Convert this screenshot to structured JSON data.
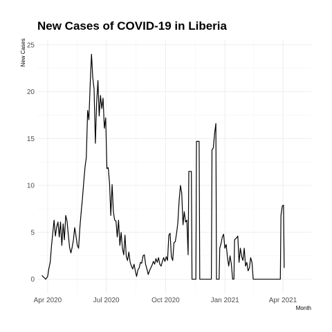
{
  "chart_data": {
    "type": "line",
    "title": "New Cases of COVID-19 in Liberia",
    "xlabel": "Month",
    "ylabel": "New Cases",
    "xlim": [
      "2020-03-16",
      "2021-05-15"
    ],
    "ylim": [
      -1.5,
      25.5
    ],
    "x_ticks": [
      {
        "date": "2020-04-01",
        "label": "Apr 2020"
      },
      {
        "date": "2020-07-01",
        "label": "Jul 2020"
      },
      {
        "date": "2020-10-01",
        "label": "Oct 2020"
      },
      {
        "date": "2021-01-01",
        "label": "Jan 2021"
      },
      {
        "date": "2021-04-01",
        "label": "Apr 2021"
      }
    ],
    "y_ticks": [
      0,
      5,
      10,
      15,
      20,
      25
    ],
    "grid": true,
    "series": [
      {
        "points": [
          [
            "2020-03-23",
            0.4
          ],
          [
            "2020-03-26",
            0.2
          ],
          [
            "2020-03-29",
            0.0
          ],
          [
            "2020-04-01",
            0.3
          ],
          [
            "2020-04-03",
            1.2
          ],
          [
            "2020-04-05",
            1.8
          ],
          [
            "2020-04-07",
            3.6
          ],
          [
            "2020-04-09",
            5.0
          ],
          [
            "2020-04-11",
            6.3
          ],
          [
            "2020-04-13",
            4.6
          ],
          [
            "2020-04-15",
            5.6
          ],
          [
            "2020-04-17",
            6.1
          ],
          [
            "2020-04-19",
            4.5
          ],
          [
            "2020-04-21",
            6.1
          ],
          [
            "2020-04-23",
            3.6
          ],
          [
            "2020-04-25",
            5.9
          ],
          [
            "2020-04-27",
            4.2
          ],
          [
            "2020-04-29",
            6.8
          ],
          [
            "2020-05-01",
            6.2
          ],
          [
            "2020-05-03",
            4.8
          ],
          [
            "2020-05-05",
            3.4
          ],
          [
            "2020-05-07",
            2.8
          ],
          [
            "2020-05-09",
            3.4
          ],
          [
            "2020-05-11",
            4.2
          ],
          [
            "2020-05-13",
            5.5
          ],
          [
            "2020-05-15",
            4.6
          ],
          [
            "2020-05-17",
            3.6
          ],
          [
            "2020-05-19",
            3.3
          ],
          [
            "2020-05-21",
            5.5
          ],
          [
            "2020-05-23",
            7.2
          ],
          [
            "2020-05-25",
            8.6
          ],
          [
            "2020-05-27",
            10.4
          ],
          [
            "2020-05-29",
            12.0
          ],
          [
            "2020-05-31",
            13.0
          ],
          [
            "2020-06-02",
            18.0
          ],
          [
            "2020-06-04",
            17.0
          ],
          [
            "2020-06-06",
            20.8
          ],
          [
            "2020-06-08",
            24.0
          ],
          [
            "2020-06-10",
            21.5
          ],
          [
            "2020-06-12",
            20.3
          ],
          [
            "2020-06-14",
            14.5
          ],
          [
            "2020-06-16",
            18.8
          ],
          [
            "2020-06-18",
            21.2
          ],
          [
            "2020-06-20",
            17.4
          ],
          [
            "2020-06-22",
            19.6
          ],
          [
            "2020-06-24",
            18.2
          ],
          [
            "2020-06-26",
            19.3
          ],
          [
            "2020-06-28",
            16.1
          ],
          [
            "2020-06-30",
            17.2
          ],
          [
            "2020-07-02",
            11.8
          ],
          [
            "2020-07-04",
            11.9
          ],
          [
            "2020-07-06",
            10.2
          ],
          [
            "2020-07-08",
            6.8
          ],
          [
            "2020-07-10",
            10.1
          ],
          [
            "2020-07-12",
            7.2
          ],
          [
            "2020-07-14",
            6.3
          ],
          [
            "2020-07-16",
            6.2
          ],
          [
            "2020-07-18",
            4.5
          ],
          [
            "2020-07-20",
            6.3
          ],
          [
            "2020-07-22",
            3.6
          ],
          [
            "2020-07-24",
            5.0
          ],
          [
            "2020-07-26",
            3.3
          ],
          [
            "2020-07-28",
            2.6
          ],
          [
            "2020-07-30",
            4.7
          ],
          [
            "2020-08-01",
            2.4
          ],
          [
            "2020-08-03",
            2.0
          ],
          [
            "2020-08-05",
            2.9
          ],
          [
            "2020-08-07",
            1.8
          ],
          [
            "2020-08-09",
            1.4
          ],
          [
            "2020-08-11",
            1.1
          ],
          [
            "2020-08-13",
            1.6
          ],
          [
            "2020-08-15",
            0.9
          ],
          [
            "2020-08-17",
            0.3
          ],
          [
            "2020-08-19",
            1.0
          ],
          [
            "2020-08-21",
            1.2
          ],
          [
            "2020-08-23",
            1.8
          ],
          [
            "2020-08-25",
            1.7
          ],
          [
            "2020-08-27",
            2.5
          ],
          [
            "2020-08-29",
            2.6
          ],
          [
            "2020-08-31",
            1.6
          ],
          [
            "2020-09-02",
            1.1
          ],
          [
            "2020-09-04",
            0.5
          ],
          [
            "2020-09-06",
            0.9
          ],
          [
            "2020-09-08",
            1.2
          ],
          [
            "2020-09-10",
            1.5
          ],
          [
            "2020-09-12",
            1.9
          ],
          [
            "2020-09-14",
            1.6
          ],
          [
            "2020-09-16",
            2.2
          ],
          [
            "2020-09-18",
            1.8
          ],
          [
            "2020-09-20",
            2.3
          ],
          [
            "2020-09-22",
            1.6
          ],
          [
            "2020-09-24",
            1.4
          ],
          [
            "2020-09-26",
            1.9
          ],
          [
            "2020-09-28",
            2.3
          ],
          [
            "2020-09-30",
            1.9
          ],
          [
            "2020-10-02",
            2.4
          ],
          [
            "2020-10-04",
            2.0
          ],
          [
            "2020-10-06",
            4.7
          ],
          [
            "2020-10-08",
            4.9
          ],
          [
            "2020-10-10",
            2.4
          ],
          [
            "2020-10-12",
            2.0
          ],
          [
            "2020-10-14",
            3.9
          ],
          [
            "2020-10-16",
            4.0
          ],
          [
            "2020-10-18",
            4.9
          ],
          [
            "2020-10-20",
            6.0
          ],
          [
            "2020-10-22",
            8.4
          ],
          [
            "2020-10-24",
            10.0
          ],
          [
            "2020-10-26",
            9.2
          ],
          [
            "2020-10-28",
            5.8
          ],
          [
            "2020-10-30",
            7.2
          ],
          [
            "2020-11-01",
            6.1
          ],
          [
            "2020-11-03",
            6.3
          ],
          [
            "2020-11-05",
            2.6
          ],
          [
            "2020-11-06",
            11.5
          ],
          [
            "2020-11-10",
            11.5
          ],
          [
            "2020-11-11",
            0.0
          ],
          [
            "2020-11-17",
            0.0
          ],
          [
            "2020-11-18",
            14.7
          ],
          [
            "2020-11-22",
            14.7
          ],
          [
            "2020-11-23",
            0.0
          ],
          [
            "2020-12-11",
            0.0
          ],
          [
            "2020-12-12",
            13.8
          ],
          [
            "2020-12-14",
            14.0
          ],
          [
            "2020-12-16",
            15.5
          ],
          [
            "2020-12-18",
            16.6
          ],
          [
            "2020-12-19",
            0.0
          ],
          [
            "2020-12-23",
            0.0
          ],
          [
            "2020-12-24",
            3.3
          ],
          [
            "2020-12-26",
            3.8
          ],
          [
            "2020-12-28",
            4.5
          ],
          [
            "2020-12-30",
            4.8
          ],
          [
            "2021-01-01",
            3.3
          ],
          [
            "2021-01-03",
            3.7
          ],
          [
            "2021-01-05",
            2.3
          ],
          [
            "2021-01-07",
            1.4
          ],
          [
            "2021-01-09",
            2.5
          ],
          [
            "2021-01-11",
            1.6
          ],
          [
            "2021-01-13",
            0.0
          ],
          [
            "2021-01-15",
            0.0
          ],
          [
            "2021-01-16",
            4.2
          ],
          [
            "2021-01-19",
            4.4
          ],
          [
            "2021-01-21",
            4.6
          ],
          [
            "2021-01-23",
            1.8
          ],
          [
            "2021-01-25",
            3.3
          ],
          [
            "2021-01-27",
            2.4
          ],
          [
            "2021-01-29",
            2.0
          ],
          [
            "2021-01-31",
            3.3
          ],
          [
            "2021-02-02",
            1.4
          ],
          [
            "2021-02-04",
            1.8
          ],
          [
            "2021-02-06",
            0.9
          ],
          [
            "2021-02-08",
            1.2
          ],
          [
            "2021-02-10",
            2.3
          ],
          [
            "2021-02-12",
            1.8
          ],
          [
            "2021-02-14",
            0.0
          ],
          [
            "2021-02-16",
            0.0
          ],
          [
            "2021-03-28",
            0.0
          ],
          [
            "2021-03-29",
            6.8
          ],
          [
            "2021-03-31",
            7.8
          ],
          [
            "2021-04-02",
            7.9
          ],
          [
            "2021-04-03",
            1.2
          ]
        ]
      }
    ]
  }
}
